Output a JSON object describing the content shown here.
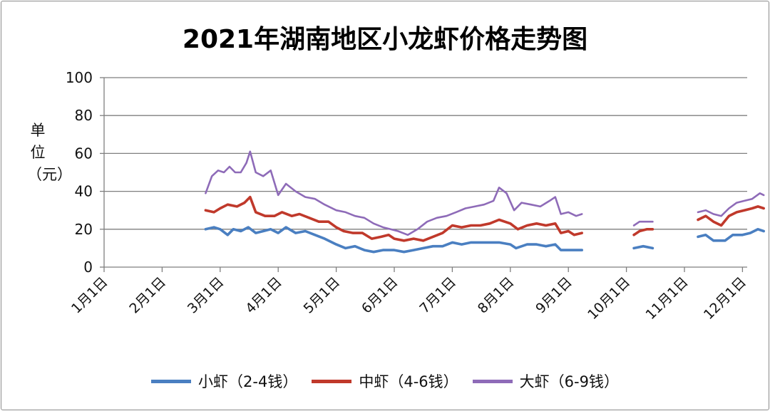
{
  "chart_data": {
    "type": "line",
    "title": "2021年湖南地区小龙虾价格走势图",
    "ylabel": "单位（元）",
    "xlabel": "",
    "ylim": [
      0,
      100
    ],
    "yticks": [
      "0",
      "20",
      "40",
      "60",
      "80",
      "100"
    ],
    "xticks": [
      "1月1日",
      "2月1日",
      "3月1日",
      "4月1日",
      "5月1日",
      "6月1日",
      "7月1日",
      "8月1日",
      "9月1日",
      "10月1日",
      "11月1日",
      "12月1日"
    ],
    "grid": true,
    "legend": "bottom",
    "series": [
      {
        "name": "小虾（2-4钱）",
        "color": "#4a7fc1",
        "segments": [
          [
            [
              "2021-02-22",
              20
            ],
            [
              "2021-02-26",
              21
            ],
            [
              "2021-03-01",
              20
            ],
            [
              "2021-03-05",
              17
            ],
            [
              "2021-03-08",
              20
            ],
            [
              "2021-03-12",
              19
            ],
            [
              "2021-03-16",
              21
            ],
            [
              "2021-03-20",
              18
            ],
            [
              "2021-03-24",
              19
            ],
            [
              "2021-03-28",
              20
            ],
            [
              "2021-04-01",
              18
            ],
            [
              "2021-04-05",
              21
            ],
            [
              "2021-04-10",
              18
            ],
            [
              "2021-04-15",
              19
            ],
            [
              "2021-04-20",
              17
            ],
            [
              "2021-04-25",
              15
            ],
            [
              "2021-05-01",
              12
            ],
            [
              "2021-05-06",
              10
            ],
            [
              "2021-05-11",
              11
            ],
            [
              "2021-05-16",
              9
            ],
            [
              "2021-05-21",
              8
            ],
            [
              "2021-05-26",
              9
            ],
            [
              "2021-06-01",
              9
            ],
            [
              "2021-06-06",
              8
            ],
            [
              "2021-06-11",
              9
            ],
            [
              "2021-06-16",
              10
            ],
            [
              "2021-06-21",
              11
            ],
            [
              "2021-06-26",
              11
            ],
            [
              "2021-07-01",
              13
            ],
            [
              "2021-07-06",
              12
            ],
            [
              "2021-07-11",
              13
            ],
            [
              "2021-07-16",
              13
            ],
            [
              "2021-07-21",
              13
            ],
            [
              "2021-07-26",
              13
            ],
            [
              "2021-08-01",
              12
            ],
            [
              "2021-08-04",
              10
            ],
            [
              "2021-08-10",
              12
            ],
            [
              "2021-08-15",
              12
            ],
            [
              "2021-08-20",
              11
            ],
            [
              "2021-08-25",
              12
            ],
            [
              "2021-08-28",
              9
            ],
            [
              "2021-09-01",
              9
            ],
            [
              "2021-09-08",
              9
            ]
          ],
          [
            [
              "2021-10-05",
              10
            ],
            [
              "2021-10-10",
              11
            ],
            [
              "2021-10-15",
              10
            ]
          ],
          [
            [
              "2021-11-08",
              16
            ],
            [
              "2021-11-12",
              17
            ],
            [
              "2021-11-16",
              14
            ],
            [
              "2021-11-22",
              14
            ],
            [
              "2021-11-26",
              17
            ],
            [
              "2021-12-01",
              17
            ],
            [
              "2021-12-05",
              18
            ],
            [
              "2021-12-09",
              20
            ],
            [
              "2021-12-12",
              19
            ]
          ]
        ]
      },
      {
        "name": "中虾（4-6钱）",
        "color": "#c0392b",
        "segments": [
          [
            [
              "2021-02-22",
              30
            ],
            [
              "2021-02-26",
              29
            ],
            [
              "2021-03-01",
              31
            ],
            [
              "2021-03-05",
              33
            ],
            [
              "2021-03-10",
              32
            ],
            [
              "2021-03-14",
              34
            ],
            [
              "2021-03-17",
              37
            ],
            [
              "2021-03-20",
              29
            ],
            [
              "2021-03-25",
              27
            ],
            [
              "2021-03-30",
              27
            ],
            [
              "2021-04-03",
              29
            ],
            [
              "2021-04-08",
              27
            ],
            [
              "2021-04-12",
              28
            ],
            [
              "2021-04-17",
              26
            ],
            [
              "2021-04-22",
              24
            ],
            [
              "2021-04-27",
              24
            ],
            [
              "2021-05-01",
              21
            ],
            [
              "2021-05-05",
              19
            ],
            [
              "2021-05-10",
              18
            ],
            [
              "2021-05-15",
              18
            ],
            [
              "2021-05-20",
              15
            ],
            [
              "2021-05-25",
              16
            ],
            [
              "2021-05-29",
              17
            ],
            [
              "2021-06-01",
              15
            ],
            [
              "2021-06-06",
              14
            ],
            [
              "2021-06-11",
              15
            ],
            [
              "2021-06-16",
              14
            ],
            [
              "2021-06-21",
              16
            ],
            [
              "2021-06-26",
              18
            ],
            [
              "2021-07-01",
              22
            ],
            [
              "2021-07-06",
              21
            ],
            [
              "2021-07-11",
              22
            ],
            [
              "2021-07-16",
              22
            ],
            [
              "2021-07-21",
              23
            ],
            [
              "2021-07-26",
              25
            ],
            [
              "2021-08-01",
              23
            ],
            [
              "2021-08-05",
              20
            ],
            [
              "2021-08-10",
              22
            ],
            [
              "2021-08-15",
              23
            ],
            [
              "2021-08-20",
              22
            ],
            [
              "2021-08-25",
              23
            ],
            [
              "2021-08-28",
              18
            ],
            [
              "2021-09-01",
              19
            ],
            [
              "2021-09-04",
              17
            ],
            [
              "2021-09-08",
              18
            ]
          ],
          [
            [
              "2021-10-05",
              17
            ],
            [
              "2021-10-08",
              19
            ],
            [
              "2021-10-12",
              20
            ],
            [
              "2021-10-15",
              20
            ]
          ],
          [
            [
              "2021-11-08",
              25
            ],
            [
              "2021-11-12",
              27
            ],
            [
              "2021-11-16",
              24
            ],
            [
              "2021-11-20",
              22
            ],
            [
              "2021-11-24",
              27
            ],
            [
              "2021-11-28",
              29
            ],
            [
              "2021-12-02",
              30
            ],
            [
              "2021-12-06",
              31
            ],
            [
              "2021-12-09",
              32
            ],
            [
              "2021-12-12",
              31
            ]
          ]
        ]
      },
      {
        "name": "大虾（6-9钱）",
        "color": "#8e6bb8",
        "segments": [
          [
            [
              "2021-02-22",
              39
            ],
            [
              "2021-02-25",
              48
            ],
            [
              "2021-02-28",
              51
            ],
            [
              "2021-03-03",
              50
            ],
            [
              "2021-03-06",
              53
            ],
            [
              "2021-03-09",
              50
            ],
            [
              "2021-03-12",
              50
            ],
            [
              "2021-03-15",
              55
            ],
            [
              "2021-03-17",
              61
            ],
            [
              "2021-03-20",
              50
            ],
            [
              "2021-03-24",
              48
            ],
            [
              "2021-03-28",
              51
            ],
            [
              "2021-04-01",
              38
            ],
            [
              "2021-04-05",
              44
            ],
            [
              "2021-04-10",
              40
            ],
            [
              "2021-04-15",
              37
            ],
            [
              "2021-04-20",
              36
            ],
            [
              "2021-04-25",
              33
            ],
            [
              "2021-05-01",
              30
            ],
            [
              "2021-05-06",
              29
            ],
            [
              "2021-05-11",
              27
            ],
            [
              "2021-05-16",
              26
            ],
            [
              "2021-05-21",
              23
            ],
            [
              "2021-05-26",
              21
            ],
            [
              "2021-05-30",
              20
            ],
            [
              "2021-06-03",
              19
            ],
            [
              "2021-06-08",
              17
            ],
            [
              "2021-06-13",
              20
            ],
            [
              "2021-06-18",
              24
            ],
            [
              "2021-06-23",
              26
            ],
            [
              "2021-06-28",
              27
            ],
            [
              "2021-07-03",
              29
            ],
            [
              "2021-07-08",
              31
            ],
            [
              "2021-07-13",
              32
            ],
            [
              "2021-07-18",
              33
            ],
            [
              "2021-07-23",
              35
            ],
            [
              "2021-07-26",
              42
            ],
            [
              "2021-07-30",
              39
            ],
            [
              "2021-08-03",
              30
            ],
            [
              "2021-08-07",
              34
            ],
            [
              "2021-08-12",
              33
            ],
            [
              "2021-08-17",
              32
            ],
            [
              "2021-08-22",
              35
            ],
            [
              "2021-08-25",
              37
            ],
            [
              "2021-08-28",
              28
            ],
            [
              "2021-09-01",
              29
            ],
            [
              "2021-09-05",
              27
            ],
            [
              "2021-09-08",
              28
            ]
          ],
          [
            [
              "2021-10-05",
              22
            ],
            [
              "2021-10-08",
              24
            ],
            [
              "2021-10-12",
              24
            ],
            [
              "2021-10-15",
              24
            ]
          ],
          [
            [
              "2021-11-08",
              29
            ],
            [
              "2021-11-12",
              30
            ],
            [
              "2021-11-16",
              28
            ],
            [
              "2021-11-20",
              27
            ],
            [
              "2021-11-24",
              31
            ],
            [
              "2021-11-28",
              34
            ],
            [
              "2021-12-02",
              35
            ],
            [
              "2021-12-06",
              36
            ],
            [
              "2021-12-10",
              39
            ],
            [
              "2021-12-12",
              38
            ]
          ]
        ]
      }
    ]
  }
}
